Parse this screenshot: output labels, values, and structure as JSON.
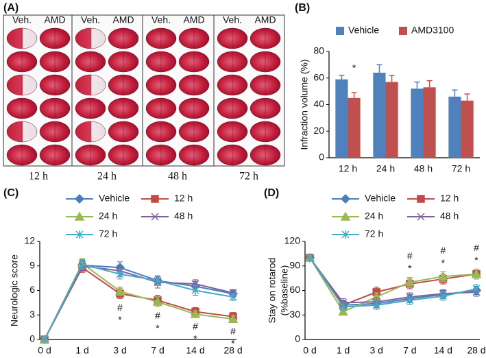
{
  "photo_panel": {
    "label": "(A)",
    "columns": [
      "Veh.",
      "AMD",
      "Veh.",
      "AMD",
      "Veh.",
      "AMD",
      "Veh.",
      "AMD"
    ],
    "times": [
      "12 h",
      "24 h",
      "48 h",
      "72 h"
    ]
  },
  "chart_data": [
    {
      "type": "bar",
      "panel_label": "(B)",
      "ylabel": "Infraction volume (%)",
      "categories": [
        "12 h",
        "24 h",
        "48 h",
        "72 h"
      ],
      "series": [
        {
          "name": "Vehicle",
          "color": "#4f81bd",
          "values": [
            59,
            64,
            52,
            46
          ],
          "errors": [
            3,
            6,
            5,
            5
          ]
        },
        {
          "name": "AMD3100",
          "color": "#c0504d",
          "values": [
            45,
            57,
            53,
            43
          ],
          "errors": [
            4,
            5,
            5,
            5
          ]
        }
      ],
      "ylim": [
        0,
        80
      ],
      "yticks": [
        0,
        20,
        40,
        60,
        80
      ],
      "annotations": [
        {
          "x": "12 h",
          "text": "*"
        }
      ]
    },
    {
      "type": "line",
      "panel_label": "(C)",
      "ylabel": "Neurologic score",
      "categories": [
        "0 d",
        "1 d",
        "3 d",
        "7 d",
        "14 d",
        "28 d"
      ],
      "series": [
        {
          "name": "Vehicle",
          "color": "#4a7ebb",
          "marker": "diamond",
          "values": [
            0,
            9.1,
            8.8,
            7.2,
            6.5,
            5.6
          ],
          "errors": [
            0,
            0.6,
            0.7,
            0.6,
            0.6,
            0.4
          ]
        },
        {
          "name": "12 h",
          "color": "#be4b48",
          "marker": "square",
          "values": [
            0,
            8.8,
            5.6,
            4.8,
            3.4,
            2.8
          ],
          "errors": [
            0,
            0.6,
            0.6,
            0.6,
            0.5,
            0.5
          ]
        },
        {
          "name": "24 h",
          "color": "#98b954",
          "marker": "triangle",
          "values": [
            0,
            9.3,
            5.9,
            4.6,
            3.1,
            2.5
          ],
          "errors": [
            0,
            0.6,
            0.5,
            0.6,
            0.4,
            0.4
          ]
        },
        {
          "name": "48 h",
          "color": "#7d60a0",
          "marker": "x",
          "values": [
            0,
            9.0,
            8.4,
            7.0,
            6.8,
            5.7
          ],
          "errors": [
            0,
            0.6,
            0.7,
            0.7,
            0.5,
            0.4
          ]
        },
        {
          "name": "72 h",
          "color": "#46aac5",
          "marker": "asterisk",
          "values": [
            0,
            9.2,
            8.0,
            7.2,
            6.0,
            5.2
          ],
          "errors": [
            0,
            0.6,
            0.6,
            0.6,
            0.6,
            0.4
          ]
        }
      ],
      "ylim": [
        0,
        12
      ],
      "yticks": [
        0,
        3,
        6,
        9,
        12
      ],
      "annotations": [
        {
          "x": "3 d",
          "text": "#"
        },
        {
          "x": "3 d",
          "text": "*"
        },
        {
          "x": "7 d",
          "text": "#"
        },
        {
          "x": "7 d",
          "text": "*"
        },
        {
          "x": "14 d",
          "text": "#"
        },
        {
          "x": "14 d",
          "text": "*"
        },
        {
          "x": "28 d",
          "text": "#"
        },
        {
          "x": "28 d",
          "text": "*"
        }
      ]
    },
    {
      "type": "line",
      "panel_label": "(D)",
      "ylabel": [
        "Stay on rotarod",
        "(%baseline)"
      ],
      "categories": [
        "0 d",
        "1 d",
        "3 d",
        "7 d",
        "14 d",
        "28 d"
      ],
      "series": [
        {
          "name": "Vehicle",
          "color": "#4a7ebb",
          "marker": "diamond",
          "values": [
            100,
            42,
            44,
            50,
            55,
            60
          ],
          "errors": [
            0,
            5,
            5,
            5,
            5,
            5
          ]
        },
        {
          "name": "12 h",
          "color": "#be4b48",
          "marker": "square",
          "values": [
            100,
            42,
            58,
            68,
            74,
            80
          ],
          "errors": [
            0,
            6,
            6,
            6,
            6,
            6
          ]
        },
        {
          "name": "24 h",
          "color": "#98b954",
          "marker": "triangle",
          "values": [
            100,
            34,
            52,
            70,
            77,
            80
          ],
          "errors": [
            0,
            4,
            5,
            6,
            6,
            6
          ]
        },
        {
          "name": "48 h",
          "color": "#7d60a0",
          "marker": "x",
          "values": [
            100,
            45,
            46,
            52,
            56,
            58
          ],
          "errors": [
            0,
            5,
            5,
            5,
            5,
            5
          ]
        },
        {
          "name": "72 h",
          "color": "#46aac5",
          "marker": "asterisk",
          "values": [
            100,
            40,
            42,
            48,
            53,
            62
          ],
          "errors": [
            0,
            5,
            5,
            5,
            5,
            5
          ]
        }
      ],
      "ylim": [
        0,
        120
      ],
      "yticks": [
        0,
        30,
        60,
        90,
        120
      ],
      "annotations": [
        {
          "x": "7 d",
          "text": "#"
        },
        {
          "x": "7 d",
          "text": "*"
        },
        {
          "x": "14 d",
          "text": "#"
        },
        {
          "x": "14 d",
          "text": "*"
        },
        {
          "x": "28 d",
          "text": "#"
        },
        {
          "x": "28 d",
          "text": "*"
        }
      ]
    }
  ]
}
